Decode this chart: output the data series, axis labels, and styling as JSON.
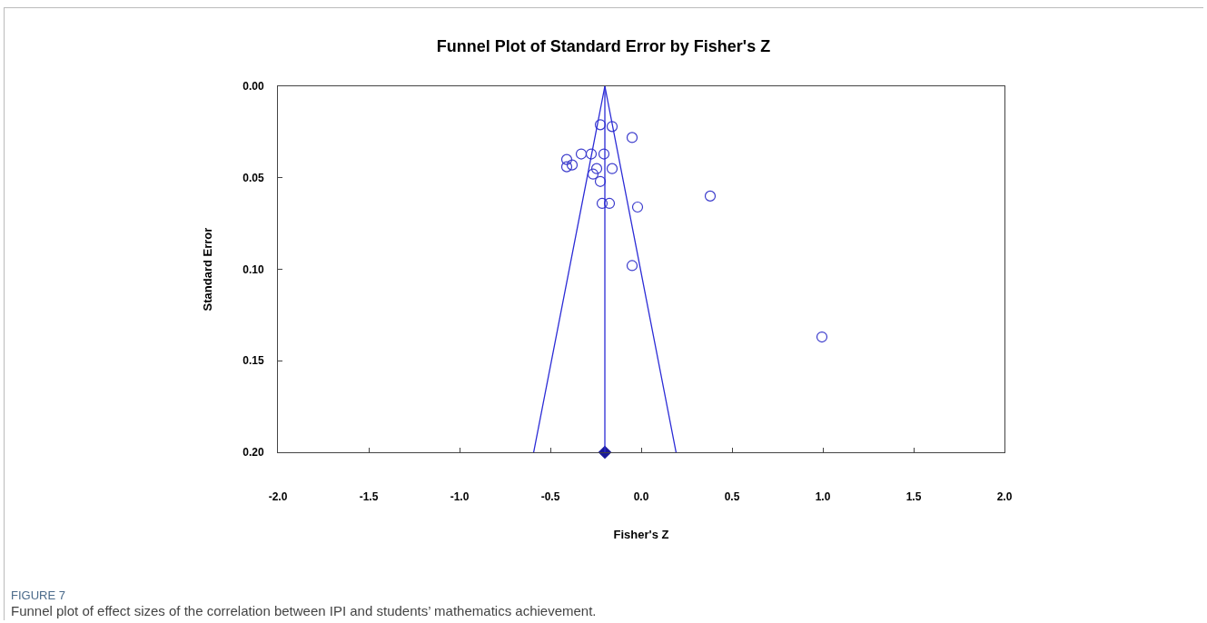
{
  "chart_data": {
    "type": "scatter",
    "title": "Funnel Plot of Standard Error by Fisher's Z",
    "xlabel": "Fisher's Z",
    "ylabel": "Standard Error",
    "annotations": [
      "FIGURE 7",
      "Funnel plot of effect sizes of the correlation between IPI and students’ mathematics achievement."
    ],
    "xlim": [
      -2.0,
      2.0
    ],
    "xticks": [
      {
        "value": -2,
        "label": "-2.0"
      },
      {
        "value": -1.5,
        "label": "-1.5"
      },
      {
        "value": -1,
        "label": "-1.0"
      },
      {
        "value": -0.5,
        "label": "-0.5"
      },
      {
        "value": 0,
        "label": "0.0"
      },
      {
        "value": 0.5,
        "label": "0.5"
      },
      {
        "value": 1,
        "label": "1.0"
      },
      {
        "value": 1.5,
        "label": "1.5"
      },
      {
        "value": 2,
        "label": "2.0"
      }
    ],
    "ylim": [
      0.2,
      0.0
    ],
    "yticks": [
      {
        "value": 0,
        "label": "0.00"
      },
      {
        "value": 0.05,
        "label": "0.05"
      },
      {
        "value": 0.1,
        "label": "0.10"
      },
      {
        "value": 0.15,
        "label": "0.15"
      },
      {
        "value": 0.2,
        "label": "0.20"
      }
    ],
    "grid": false,
    "marker": "circle",
    "series": [
      {
        "color": "#3b3bcc",
        "x": [
          -0.225,
          -0.16,
          -0.05,
          -0.33,
          -0.275,
          -0.205,
          -0.41,
          -0.41,
          -0.38,
          -0.245,
          -0.16,
          -0.265,
          -0.225,
          0.38,
          -0.215,
          -0.175,
          -0.02,
          -0.05,
          0.995
        ],
        "values": [
          0.021,
          0.022,
          0.028,
          0.037,
          0.037,
          0.037,
          0.04,
          0.044,
          0.043,
          0.045,
          0.045,
          0.048,
          0.052,
          0.06,
          0.064,
          0.064,
          0.066,
          0.098,
          0.137
        ]
      },
      {
        "type": "line",
        "color": "#2b2bd6",
        "marker": "none",
        "x": [
          -0.592,
          -0.2,
          0.192
        ],
        "values": [
          0.2,
          0.0,
          0.2
        ]
      },
      {
        "type": "scatter",
        "color": "#1a1a99",
        "marker": "diamond",
        "x": [
          -0.2
        ],
        "values": [
          0.2
        ]
      }
    ],
    "ref_lines": [
      {
        "axis": "x",
        "value": -0.2,
        "color": "#2b2bd6"
      }
    ]
  }
}
